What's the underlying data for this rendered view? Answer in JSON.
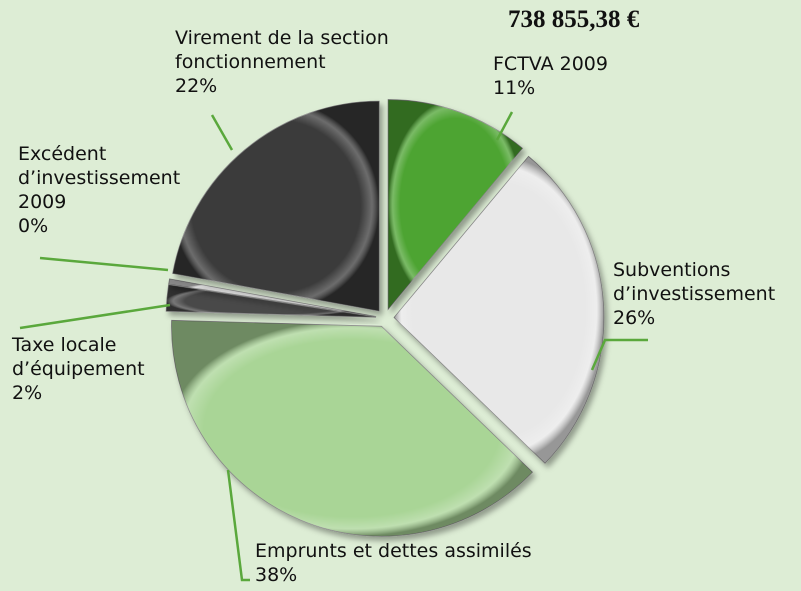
{
  "chart_data": {
    "type": "pie",
    "title": "738 855,38 €",
    "categories": [
      "FCTVA 2009",
      "Subventions d’investissement",
      "Emprunts et dettes assimilés",
      "Taxe locale d’équipement",
      "Excédent d’investissement 2009",
      "Virement de la section fonctionnement"
    ],
    "values": [
      11,
      26,
      38,
      2,
      0.4,
      22
    ],
    "value_labels": [
      "11%",
      "26%",
      "38%",
      "2%",
      "0%",
      "22%"
    ],
    "colors": [
      "#4ea433",
      "#e8e8e8",
      "#a9d596",
      "#4a4a4a",
      "#d0d0d0",
      "#3b3b3b"
    ]
  }
}
